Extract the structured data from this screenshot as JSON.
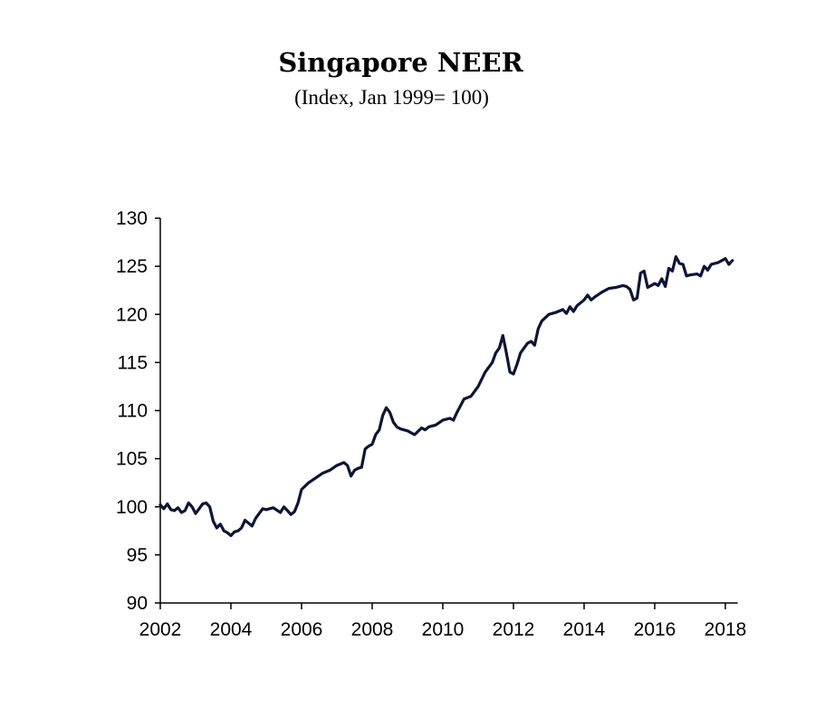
{
  "chart_data": {
    "type": "line",
    "title": "Singapore NEER",
    "subtitle": "(Index, Jan 1999= 100)",
    "xlabel": "",
    "ylabel": "",
    "xlim": [
      2002,
      2018.3
    ],
    "ylim": [
      90,
      130
    ],
    "yticks": [
      90,
      95,
      100,
      105,
      110,
      115,
      120,
      125,
      130
    ],
    "xticks": [
      2002,
      2004,
      2006,
      2008,
      2010,
      2012,
      2014,
      2016,
      2018
    ],
    "xtick_labels": [
      "2002",
      "2004",
      "2006",
      "2008",
      "2010",
      "2012",
      "2014",
      "2016",
      "2018"
    ],
    "grid": false,
    "legend": "none",
    "line_color": "#0d1535",
    "series": [
      {
        "x": [
          2002.0,
          2002.1,
          2002.2,
          2002.3,
          2002.4,
          2002.5,
          2002.6,
          2002.7,
          2002.8,
          2002.9,
          2003.0,
          2003.1,
          2003.2,
          2003.3,
          2003.4,
          2003.5,
          2003.6,
          2003.7,
          2003.8,
          2003.9,
          2004.0,
          2004.1,
          2004.2,
          2004.3,
          2004.4,
          2004.5,
          2004.6,
          2004.7,
          2004.8,
          2004.9,
          2005.0,
          2005.2,
          2005.4,
          2005.5,
          2005.6,
          2005.7,
          2005.8,
          2005.9,
          2006.0,
          2006.2,
          2006.4,
          2006.6,
          2006.8,
          2007.0,
          2007.2,
          2007.3,
          2007.4,
          2007.5,
          2007.6,
          2007.7,
          2007.8,
          2007.9,
          2008.0,
          2008.1,
          2008.2,
          2008.3,
          2008.4,
          2008.5,
          2008.6,
          2008.7,
          2008.8,
          2008.9,
          2009.0,
          2009.2,
          2009.4,
          2009.5,
          2009.6,
          2009.8,
          2010.0,
          2010.2,
          2010.3,
          2010.4,
          2010.6,
          2010.8,
          2011.0,
          2011.2,
          2011.4,
          2011.5,
          2011.6,
          2011.7,
          2011.8,
          2011.9,
          2012.0,
          2012.1,
          2012.2,
          2012.3,
          2012.4,
          2012.5,
          2012.6,
          2012.7,
          2012.8,
          2013.0,
          2013.2,
          2013.4,
          2013.5,
          2013.6,
          2013.7,
          2013.8,
          2014.0,
          2014.1,
          2014.2,
          2014.3,
          2014.5,
          2014.7,
          2014.9,
          2015.0,
          2015.1,
          2015.2,
          2015.3,
          2015.4,
          2015.5,
          2015.6,
          2015.7,
          2015.8,
          2015.9,
          2016.0,
          2016.1,
          2016.2,
          2016.3,
          2016.4,
          2016.5,
          2016.6,
          2016.7,
          2016.8,
          2016.9,
          2017.0,
          2017.2,
          2017.3,
          2017.4,
          2017.5,
          2017.6,
          2017.8,
          2017.9,
          2018.0,
          2018.1,
          2018.2
        ],
        "y": [
          100.2,
          99.8,
          100.3,
          99.7,
          99.6,
          99.9,
          99.4,
          99.6,
          100.4,
          100.0,
          99.3,
          99.8,
          100.3,
          100.4,
          100.0,
          98.5,
          97.8,
          98.2,
          97.5,
          97.3,
          97.0,
          97.4,
          97.5,
          97.8,
          98.6,
          98.3,
          98.0,
          98.8,
          99.3,
          99.8,
          99.7,
          99.9,
          99.4,
          100.0,
          99.6,
          99.2,
          99.5,
          100.4,
          101.8,
          102.5,
          103.0,
          103.5,
          103.8,
          104.3,
          104.6,
          104.3,
          103.2,
          103.8,
          104.0,
          104.1,
          106.0,
          106.3,
          106.5,
          107.5,
          108.0,
          109.5,
          110.3,
          109.8,
          108.8,
          108.3,
          108.1,
          108.0,
          107.9,
          107.5,
          108.2,
          108.0,
          108.3,
          108.5,
          109.0,
          109.2,
          109.0,
          109.8,
          111.2,
          111.5,
          112.5,
          114.0,
          115.0,
          116.0,
          116.5,
          117.8,
          116.0,
          114.0,
          113.8,
          114.8,
          116.0,
          116.5,
          117.0,
          117.2,
          116.8,
          118.5,
          119.3,
          120.0,
          120.2,
          120.5,
          120.1,
          120.8,
          120.3,
          120.9,
          121.5,
          122.0,
          121.5,
          121.8,
          122.3,
          122.7,
          122.8,
          122.9,
          123.0,
          122.9,
          122.6,
          121.5,
          121.7,
          124.3,
          124.5,
          122.8,
          123.0,
          123.2,
          123.0,
          123.7,
          122.9,
          124.8,
          124.5,
          126.0,
          125.3,
          125.2,
          124.0,
          124.1,
          124.2,
          124.0,
          125.0,
          124.6,
          125.2,
          125.4,
          125.6,
          125.8,
          125.2,
          125.6
        ]
      }
    ]
  }
}
